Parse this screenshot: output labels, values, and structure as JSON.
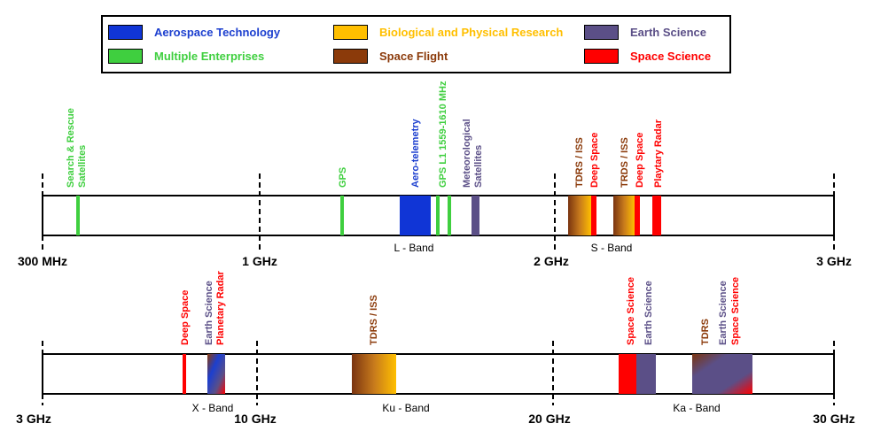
{
  "legend": [
    {
      "label": "Aerospace Technology",
      "color": "#1035d6",
      "text_color": "#1c3fcf"
    },
    {
      "label": "Biological and Physical Research",
      "color": "#ffbf00",
      "text_color": "#ffbf00"
    },
    {
      "label": "Earth Science",
      "color": "#5b4f87",
      "text_color": "#5b4f87"
    },
    {
      "label": "Multiple Enterprises",
      "color": "#3fcf3f",
      "text_color": "#3fcf3f"
    },
    {
      "label": "Space Flight",
      "color": "#8b3a0a",
      "text_color": "#8b3a0a"
    },
    {
      "label": "Space Science",
      "color": "#ff0000",
      "text_color": "#ff0000"
    }
  ],
  "rows": [
    {
      "ticks": [
        "300 MHz",
        "1 GHz",
        "2 GHz",
        "3 GHz"
      ],
      "bands": [
        "L - Band",
        "S - Band"
      ],
      "labels": [
        {
          "text": [
            "Search & Rescue",
            "Satellites"
          ],
          "color": "#3fcf3f"
        },
        {
          "text": [
            "GPS"
          ],
          "color": "#3fcf3f"
        },
        {
          "text": [
            "Aero-telemetry"
          ],
          "color": "#1c3fcf"
        },
        {
          "text": [
            "GPS L1 1559-1610 MHz"
          ],
          "color": "#3fcf3f"
        },
        {
          "text": [
            "Meteorological",
            "Satellites"
          ],
          "color": "#5b4f87"
        },
        {
          "text": [
            "TDRS / ISS"
          ],
          "color": "#8b3a0a"
        },
        {
          "text": [
            "Deep Space"
          ],
          "color": "#ff0000"
        },
        {
          "text": [
            "TRDS / ISS"
          ],
          "color": "#8b3a0a"
        },
        {
          "text": [
            "Deep Space"
          ],
          "color": "#ff0000"
        },
        {
          "text": [
            "Playtary Radar"
          ],
          "color": "#ff0000"
        }
      ]
    },
    {
      "ticks": [
        "3 GHz",
        "10 GHz",
        "20 GHz",
        "30 GHz"
      ],
      "bands": [
        "X - Band",
        "Ku - Band",
        "Ka - Band"
      ],
      "labels": [
        {
          "text": [
            "Deep Space"
          ],
          "color": "#ff0000"
        },
        {
          "text": [
            "Earth Science"
          ],
          "color": "#5b4f87"
        },
        {
          "text": [
            "Planetary Radar"
          ],
          "color": "#ff0000"
        },
        {
          "text": [
            "TDRS / ISS"
          ],
          "color": "#8b3a0a"
        },
        {
          "text": [
            "Space Science"
          ],
          "color": "#ff0000"
        },
        {
          "text": [
            "Earth Science"
          ],
          "color": "#5b4f87"
        },
        {
          "text": [
            "TDRS"
          ],
          "color": "#8b3a0a"
        },
        {
          "text": [
            "Earth Science"
          ],
          "color": "#5b4f87"
        },
        {
          "text": [
            "Space Science"
          ],
          "color": "#ff0000"
        }
      ]
    }
  ]
}
